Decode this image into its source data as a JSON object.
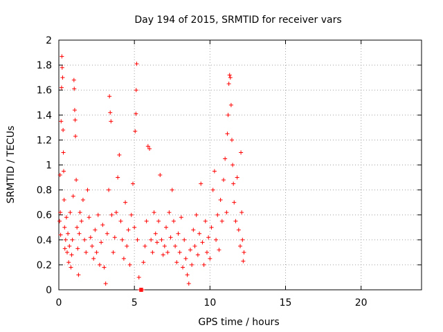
{
  "chart_data": {
    "type": "scatter",
    "title": "Day 194 of 2015, SRMTID for receiver vars",
    "xlabel": "GPS time / hours",
    "ylabel": "SRMTID / TECUs",
    "xlim": [
      0,
      24
    ],
    "ylim": [
      0,
      2
    ],
    "xticks": [
      0,
      5,
      10,
      15,
      20
    ],
    "xtick_labels": [
      "0",
      "5",
      "10",
      "15",
      "20"
    ],
    "yticks": [
      0,
      0.2,
      0.4,
      0.6,
      0.8,
      1,
      1.2,
      1.4,
      1.6,
      1.8,
      2
    ],
    "ytick_labels": [
      "0",
      "0.2",
      "0.4",
      "0.6",
      "0.8",
      "1",
      "1.2",
      "1.4",
      "1.6",
      "1.8",
      "2"
    ],
    "grid": true,
    "marker": "+",
    "color": "#ff0000",
    "series": [
      {
        "name": "SRMTID",
        "points": [
          [
            0.05,
            0.55
          ],
          [
            0.08,
            0.92
          ],
          [
            0.1,
            0.62
          ],
          [
            0.12,
            0.44
          ],
          [
            0.15,
            1.35
          ],
          [
            0.18,
            1.62
          ],
          [
            0.2,
            1.87
          ],
          [
            0.22,
            1.78
          ],
          [
            0.25,
            1.7
          ],
          [
            0.28,
            1.28
          ],
          [
            0.3,
            1.1
          ],
          [
            0.32,
            0.95
          ],
          [
            0.35,
            0.72
          ],
          [
            0.38,
            0.5
          ],
          [
            0.4,
            0.33
          ],
          [
            0.45,
            0.4
          ],
          [
            0.5,
            0.58
          ],
          [
            0.55,
            0.3
          ],
          [
            0.6,
            0.45
          ],
          [
            0.65,
            0.22
          ],
          [
            0.7,
            0.35
          ],
          [
            0.75,
            0.62
          ],
          [
            0.8,
            0.18
          ],
          [
            0.85,
            0.28
          ],
          [
            0.9,
            0.4
          ],
          [
            0.95,
            0.75
          ],
          [
            1.0,
            1.68
          ],
          [
            1.02,
            1.61
          ],
          [
            1.05,
            1.44
          ],
          [
            1.08,
            1.36
          ],
          [
            1.1,
            1.23
          ],
          [
            1.15,
            0.88
          ],
          [
            1.2,
            0.5
          ],
          [
            1.25,
            0.33
          ],
          [
            1.3,
            0.12
          ],
          [
            1.35,
            0.45
          ],
          [
            1.4,
            0.62
          ],
          [
            1.5,
            0.55
          ],
          [
            1.6,
            0.72
          ],
          [
            1.7,
            0.4
          ],
          [
            1.8,
            0.3
          ],
          [
            1.9,
            0.8
          ],
          [
            2.0,
            0.58
          ],
          [
            2.1,
            0.42
          ],
          [
            2.2,
            0.35
          ],
          [
            2.3,
            0.25
          ],
          [
            2.4,
            0.48
          ],
          [
            2.5,
            0.3
          ],
          [
            2.6,
            0.6
          ],
          [
            2.7,
            0.2
          ],
          [
            2.8,
            0.38
          ],
          [
            2.9,
            0.52
          ],
          [
            3.0,
            0.18
          ],
          [
            3.1,
            0.05
          ],
          [
            3.2,
            0.45
          ],
          [
            3.3,
            0.8
          ],
          [
            3.35,
            1.55
          ],
          [
            3.4,
            1.42
          ],
          [
            3.45,
            1.35
          ],
          [
            3.5,
            0.6
          ],
          [
            3.6,
            0.3
          ],
          [
            3.7,
            0.42
          ],
          [
            3.8,
            0.62
          ],
          [
            3.9,
            0.9
          ],
          [
            4.0,
            1.08
          ],
          [
            4.1,
            0.55
          ],
          [
            4.2,
            0.4
          ],
          [
            4.3,
            0.25
          ],
          [
            4.4,
            0.7
          ],
          [
            4.5,
            0.35
          ],
          [
            4.6,
            0.48
          ],
          [
            4.7,
            0.2
          ],
          [
            4.8,
            0.6
          ],
          [
            4.9,
            0.85
          ],
          [
            5.0,
            0.5
          ],
          [
            5.05,
            1.27
          ],
          [
            5.1,
            1.41
          ],
          [
            5.12,
            1.6
          ],
          [
            5.15,
            1.81
          ],
          [
            5.2,
            0.4
          ],
          [
            5.3,
            0.1
          ],
          [
            5.35,
            0.0
          ],
          [
            5.4,
            0.0
          ],
          [
            5.45,
            0.0
          ],
          [
            5.5,
            0.0
          ],
          [
            5.55,
            0.0
          ],
          [
            5.6,
            0.22
          ],
          [
            5.7,
            0.35
          ],
          [
            5.8,
            0.55
          ],
          [
            5.9,
            1.15
          ],
          [
            6.0,
            1.13
          ],
          [
            6.1,
            0.4
          ],
          [
            6.2,
            0.3
          ],
          [
            6.3,
            0.62
          ],
          [
            6.4,
            0.45
          ],
          [
            6.5,
            0.38
          ],
          [
            6.6,
            0.55
          ],
          [
            6.7,
            0.92
          ],
          [
            6.8,
            0.4
          ],
          [
            6.9,
            0.28
          ],
          [
            7.0,
            0.35
          ],
          [
            7.1,
            0.5
          ],
          [
            7.2,
            0.3
          ],
          [
            7.3,
            0.62
          ],
          [
            7.4,
            0.42
          ],
          [
            7.5,
            0.8
          ],
          [
            7.6,
            0.55
          ],
          [
            7.7,
            0.35
          ],
          [
            7.8,
            0.22
          ],
          [
            7.9,
            0.45
          ],
          [
            8.0,
            0.3
          ],
          [
            8.1,
            0.58
          ],
          [
            8.2,
            0.18
          ],
          [
            8.3,
            0.4
          ],
          [
            8.4,
            0.25
          ],
          [
            8.5,
            0.12
          ],
          [
            8.6,
            0.05
          ],
          [
            8.7,
            0.32
          ],
          [
            8.8,
            0.2
          ],
          [
            8.9,
            0.48
          ],
          [
            9.0,
            0.35
          ],
          [
            9.1,
            0.6
          ],
          [
            9.2,
            0.28
          ],
          [
            9.3,
            0.45
          ],
          [
            9.4,
            0.85
          ],
          [
            9.5,
            0.38
          ],
          [
            9.6,
            0.2
          ],
          [
            9.7,
            0.55
          ],
          [
            9.8,
            0.3
          ],
          [
            9.9,
            0.42
          ],
          [
            10.0,
            0.25
          ],
          [
            10.1,
            0.5
          ],
          [
            10.2,
            0.8
          ],
          [
            10.3,
            0.95
          ],
          [
            10.4,
            0.4
          ],
          [
            10.5,
            0.6
          ],
          [
            10.6,
            0.32
          ],
          [
            10.7,
            0.72
          ],
          [
            10.8,
            0.55
          ],
          [
            10.9,
            0.88
          ],
          [
            11.0,
            1.05
          ],
          [
            11.1,
            0.62
          ],
          [
            11.15,
            1.25
          ],
          [
            11.2,
            1.4
          ],
          [
            11.25,
            1.65
          ],
          [
            11.3,
            1.72
          ],
          [
            11.35,
            1.7
          ],
          [
            11.4,
            1.48
          ],
          [
            11.45,
            1.2
          ],
          [
            11.5,
            1.0
          ],
          [
            11.55,
            0.85
          ],
          [
            11.6,
            0.7
          ],
          [
            11.7,
            0.55
          ],
          [
            11.8,
            0.9
          ],
          [
            11.9,
            0.48
          ],
          [
            12.0,
            0.35
          ],
          [
            12.05,
            1.1
          ],
          [
            12.1,
            0.62
          ],
          [
            12.15,
            0.4
          ],
          [
            12.2,
            0.23
          ],
          [
            12.25,
            0.3
          ]
        ]
      }
    ]
  }
}
